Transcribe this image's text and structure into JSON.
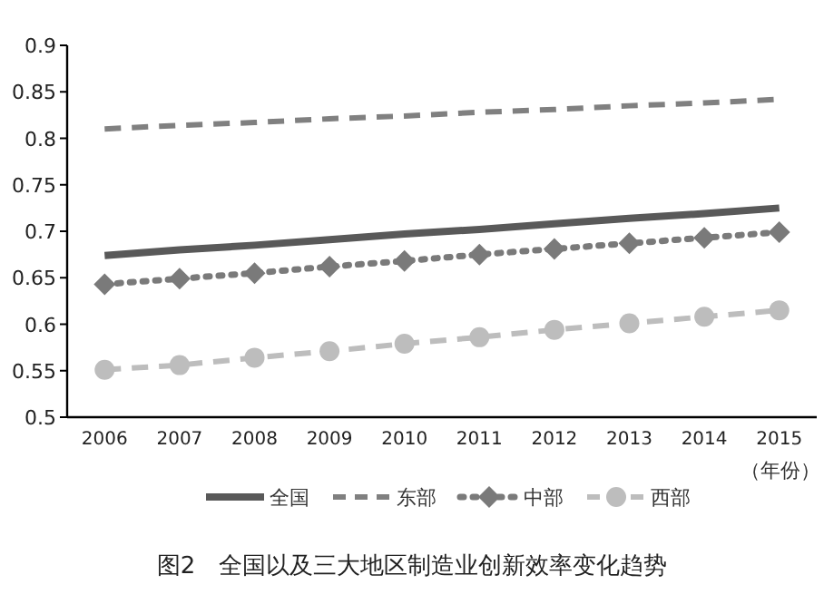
{
  "chart_data": {
    "type": "line",
    "title": "图2　全国以及三大地区制造业创新效率变化趋势",
    "xlabel": "（年份）",
    "categories": [
      "2006",
      "2007",
      "2008",
      "2009",
      "2010",
      "2011",
      "2012",
      "2013",
      "2014",
      "2015"
    ],
    "ylim": [
      0.5,
      0.9
    ],
    "yticks": [
      0.5,
      0.55,
      0.6,
      0.65,
      0.7,
      0.75,
      0.8,
      0.85,
      0.9
    ],
    "grid": false,
    "legend": "bottom",
    "series": [
      {
        "name": "全国",
        "color": "#595959",
        "line_style": "solid",
        "marker": "none",
        "values": [
          0.674,
          0.68,
          0.685,
          0.691,
          0.697,
          0.702,
          0.708,
          0.714,
          0.719,
          0.725
        ]
      },
      {
        "name": "东部",
        "color": "#808080",
        "line_style": "dashed",
        "marker": "none",
        "values": [
          0.81,
          0.814,
          0.817,
          0.821,
          0.824,
          0.828,
          0.831,
          0.835,
          0.838,
          0.842
        ]
      },
      {
        "name": "中部",
        "color": "#7a7a7a",
        "line_style": "dotted",
        "marker": "diamond",
        "values": [
          0.643,
          0.649,
          0.655,
          0.662,
          0.668,
          0.675,
          0.681,
          0.687,
          0.693,
          0.699
        ]
      },
      {
        "name": "西部",
        "color": "#bdbdbd",
        "line_style": "dashed",
        "marker": "circle",
        "values": [
          0.551,
          0.556,
          0.564,
          0.571,
          0.579,
          0.586,
          0.594,
          0.601,
          0.608,
          0.615
        ]
      }
    ]
  }
}
